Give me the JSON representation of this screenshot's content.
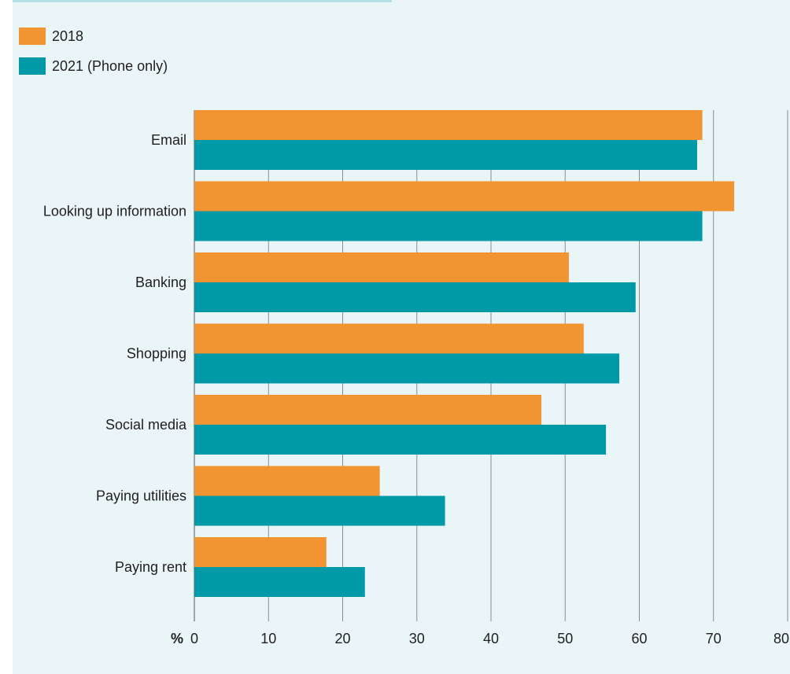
{
  "legend": {
    "items": [
      {
        "label": "2018",
        "color": "#f39433"
      },
      {
        "label": "2021 (Phone only)",
        "color": "#0099a8"
      }
    ]
  },
  "chart_data": {
    "type": "bar",
    "orientation": "horizontal",
    "categories": [
      "Email",
      "Looking up information",
      "Banking",
      "Shopping",
      "Social media",
      "Paying utilities",
      "Paying rent"
    ],
    "series": [
      {
        "name": "2018",
        "color": "#f39433",
        "values": [
          68.5,
          72.8,
          50.5,
          52.5,
          46.8,
          25.0,
          17.8
        ]
      },
      {
        "name": "2021 (Phone only)",
        "color": "#0099a8",
        "values": [
          67.8,
          68.5,
          59.5,
          57.3,
          55.5,
          33.8,
          23.0
        ]
      }
    ],
    "x_ticks": [
      "0",
      "10",
      "20",
      "30",
      "40",
      "50",
      "60",
      "70",
      "80"
    ],
    "x_unit_label": "%",
    "xlim": [
      0,
      80
    ],
    "grid": "vertical",
    "legend_position": "top-left"
  }
}
